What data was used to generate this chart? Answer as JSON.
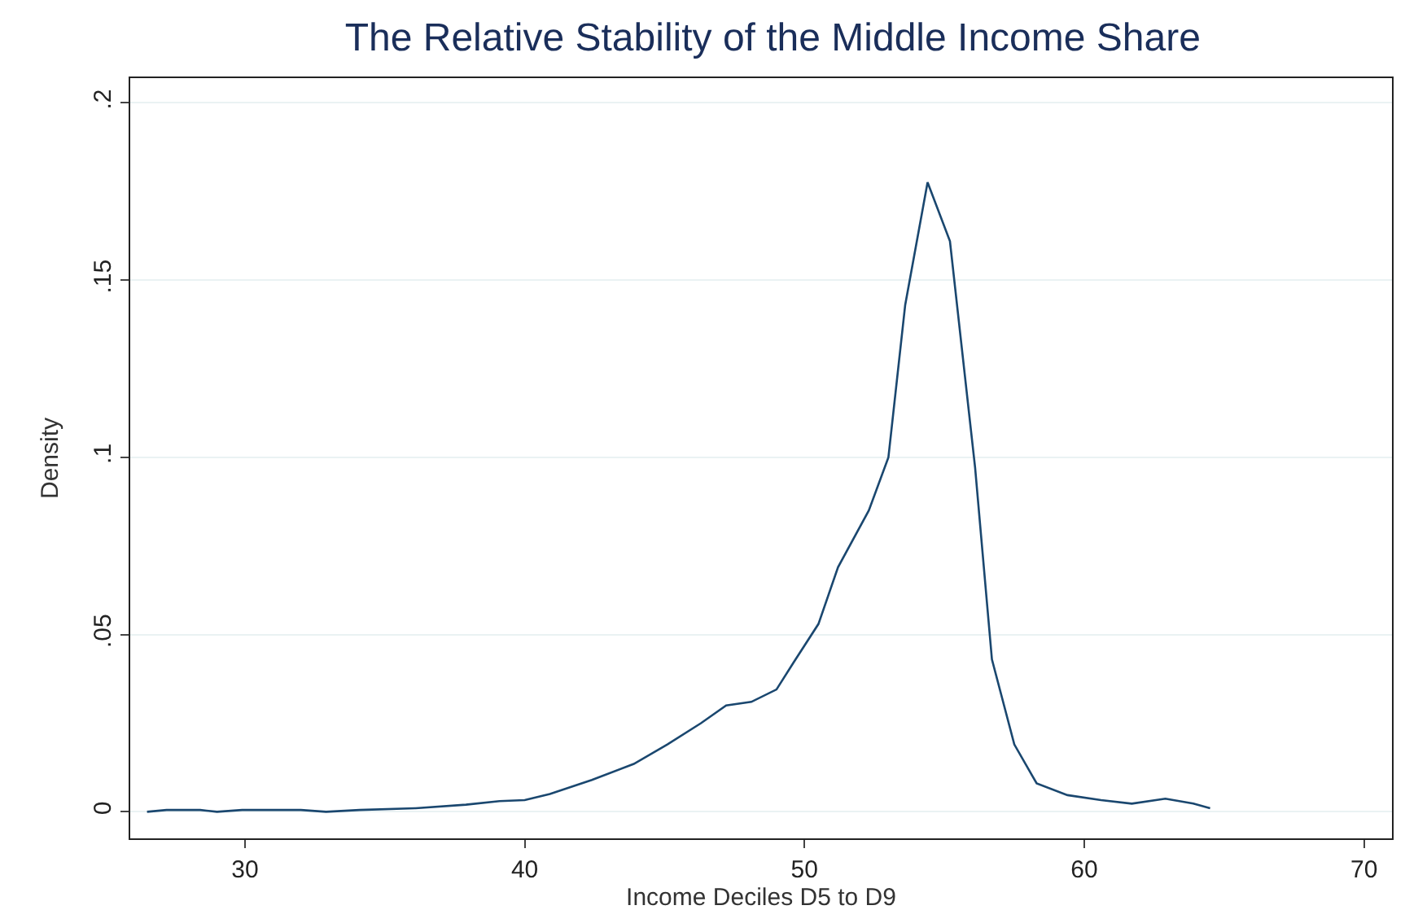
{
  "chart_data": {
    "type": "line",
    "title": "The Relative Stability of the Middle Income Share",
    "xlabel": "Income Deciles D5 to D9",
    "ylabel": "Density",
    "x": [
      26.5,
      27.2,
      28.4,
      29,
      29.9,
      32,
      32.9,
      34.1,
      36.1,
      37.9,
      39.1,
      40,
      40.9,
      42.4,
      43.9,
      45.1,
      46.3,
      47.2,
      48.1,
      49,
      49.6,
      50.5,
      51.2,
      52.3,
      53,
      53.6,
      54.4,
      55.2,
      56.1,
      56.7,
      57.5,
      58.3,
      59.4,
      60.6,
      61.7,
      62.9,
      63.9,
      64.5
    ],
    "series": [
      {
        "color": "#1a476f",
        "values": [
          0,
          0.0005,
          0.0005,
          0,
          0.0005,
          0.0005,
          0,
          0.0005,
          0.001,
          0.002,
          0.003,
          0.0033,
          0.005,
          0.009,
          0.0135,
          0.019,
          0.025,
          0.03,
          0.031,
          0.0345,
          0.042,
          0.053,
          0.069,
          0.085,
          0.1,
          0.143,
          0.1776,
          0.161,
          0.097,
          0.043,
          0.019,
          0.008,
          0.0047,
          0.0033,
          0.0023,
          0.0037,
          0.0023,
          0.001
        ]
      }
    ],
    "xlim": [
      25.9,
      71
    ],
    "xticks": [
      30,
      40,
      50,
      60,
      70
    ],
    "ylim": [
      -0.0075,
      0.207
    ],
    "yticks": [
      {
        "value": 0,
        "label": "0"
      },
      {
        "value": 0.05,
        "label": ".05"
      },
      {
        "value": 0.1,
        "label": ".1"
      },
      {
        "value": 0.15,
        "label": ".15"
      },
      {
        "value": 0.2,
        "label": ".2"
      }
    ],
    "grid": "y",
    "marker": "none",
    "line_style": "solid"
  }
}
